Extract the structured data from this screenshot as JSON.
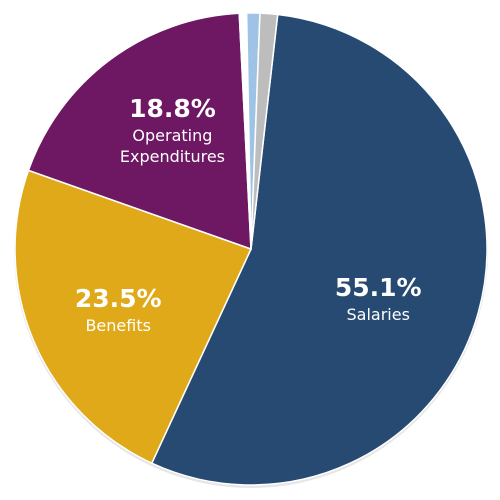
{
  "chart_data": {
    "type": "pie",
    "title": "",
    "start_angle_deg": 0,
    "direction": "clockwise",
    "slices": [
      {
        "label": "Salaries",
        "label_lines": [
          "Salaries"
        ],
        "value": 55.1,
        "percent_text": "55.1%",
        "color": "#264a72",
        "show_label": true
      },
      {
        "label": "Benefits",
        "label_lines": [
          "Benefits"
        ],
        "value": 23.5,
        "percent_text": "23.5%",
        "color": "#dfa919",
        "show_label": true
      },
      {
        "label": "Operating Expenditures",
        "label_lines": [
          "Operating",
          "Expenditures"
        ],
        "value": 18.8,
        "percent_text": "18.8%",
        "color": "#6e1763",
        "show_label": true
      },
      {
        "label": "",
        "label_lines": [],
        "value": 0.5,
        "percent_text": "",
        "color": "#ffffff",
        "show_label": false
      },
      {
        "label": "",
        "label_lines": [],
        "value": 0.9,
        "percent_text": "",
        "color": "#9ec3e6",
        "show_label": false
      },
      {
        "label": "",
        "label_lines": [],
        "value": 1.2,
        "percent_text": "",
        "color": "#bdbdbd",
        "show_label": false
      }
    ]
  }
}
